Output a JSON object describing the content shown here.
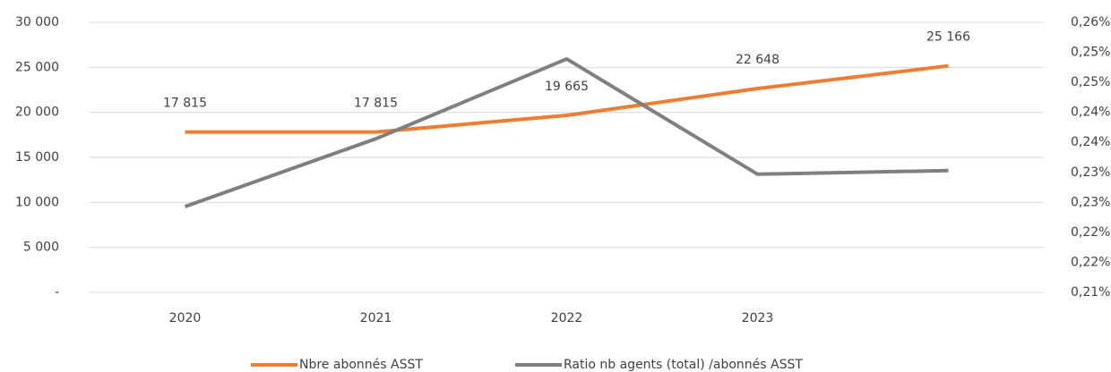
{
  "chart_data": {
    "type": "line",
    "categories": [
      "2020",
      "2021",
      "2022",
      "2023",
      null
    ],
    "series": [
      {
        "name": "Nbre abonnés ASST",
        "color": "#ed7d31",
        "values": [
          17815,
          17815,
          19665,
          22648,
          25166
        ],
        "value_labels": [
          "17 815",
          "17 815",
          "19 665",
          "22 648",
          "25 166"
        ]
      },
      {
        "name": "Ratio nb agents (total) /abonnés ASST",
        "color": "#7f7f7f",
        "axis": "y2",
        "values": [
          0.2243,
          0.2356,
          0.2489,
          0.2297,
          0.2303
        ]
      }
    ],
    "ylim": [
      0,
      30000
    ],
    "yticks": [
      {
        "value": 0,
        "label": "-"
      },
      {
        "value": 5000,
        "label": "5 000"
      },
      {
        "value": 10000,
        "label": "10 000"
      },
      {
        "value": 15000,
        "label": "15 000"
      },
      {
        "value": 20000,
        "label": "20 000"
      },
      {
        "value": 25000,
        "label": "25 000"
      },
      {
        "value": 30000,
        "label": "30 000"
      }
    ],
    "y2lim": [
      0.21,
      0.255
    ],
    "y2ticks": [
      {
        "value": 0.21,
        "label": "0,21%"
      },
      {
        "value": 0.215,
        "label": "0,22%"
      },
      {
        "value": 0.22,
        "label": "0,22%"
      },
      {
        "value": 0.225,
        "label": "0,23%"
      },
      {
        "value": 0.23,
        "label": "0,23%"
      },
      {
        "value": 0.235,
        "label": "0,24%"
      },
      {
        "value": 0.24,
        "label": "0,24%"
      },
      {
        "value": 0.245,
        "label": "0,25%"
      },
      {
        "value": 0.25,
        "label": "0,25%"
      },
      {
        "value": 0.255,
        "label": "0,26%"
      }
    ],
    "grid": true,
    "legend": "bottom"
  }
}
